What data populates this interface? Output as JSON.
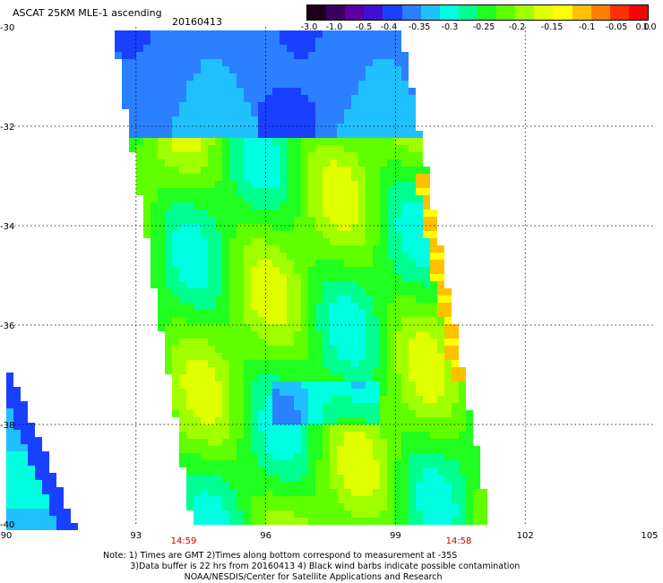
{
  "header": {
    "title": "ASCAT 25KM MLE-1 ascending",
    "date": "20160413"
  },
  "colorbar": {
    "tick_labels": [
      "-3.0",
      "-1.0",
      "-0.5",
      "-0.4",
      "-0.35",
      "-0.3",
      "-0.25",
      "-0.2",
      "-0.15",
      "-0.1",
      "-0.05",
      "0.0",
      "1.0"
    ],
    "colors": [
      "#1a001a",
      "#3a0060",
      "#5a00a0",
      "#4010d0",
      "#1a40ff",
      "#2a80ff",
      "#20c0ff",
      "#00ffe0",
      "#00ff90",
      "#20ff20",
      "#60ff00",
      "#a0ff00",
      "#e0ff00",
      "#ffff00",
      "#ffc000",
      "#ff8000",
      "#ff3000",
      "#ff0000"
    ]
  },
  "axes": {
    "lat_labels": [
      "-30",
      "-32",
      "-34",
      "-36",
      "-38",
      "-40"
    ],
    "lon_labels": [
      "90",
      "93",
      "96",
      "99",
      "102",
      "105"
    ],
    "lat_range": [
      -40,
      -30
    ],
    "lon_range": [
      90,
      105
    ],
    "grid": true
  },
  "times": {
    "start": "14:59",
    "end": "14:58"
  },
  "notes": {
    "line1": "Note: 1) Times are GMT 2)Times along bottom correspond to measurement at -35S",
    "line2": "3)Data buffer is 22 hrs from 20160413 4) Black wind barbs indicate possible contamination",
    "line3": "NOAA/NESDIS/Center for Satellite Applications and Research"
  }
}
